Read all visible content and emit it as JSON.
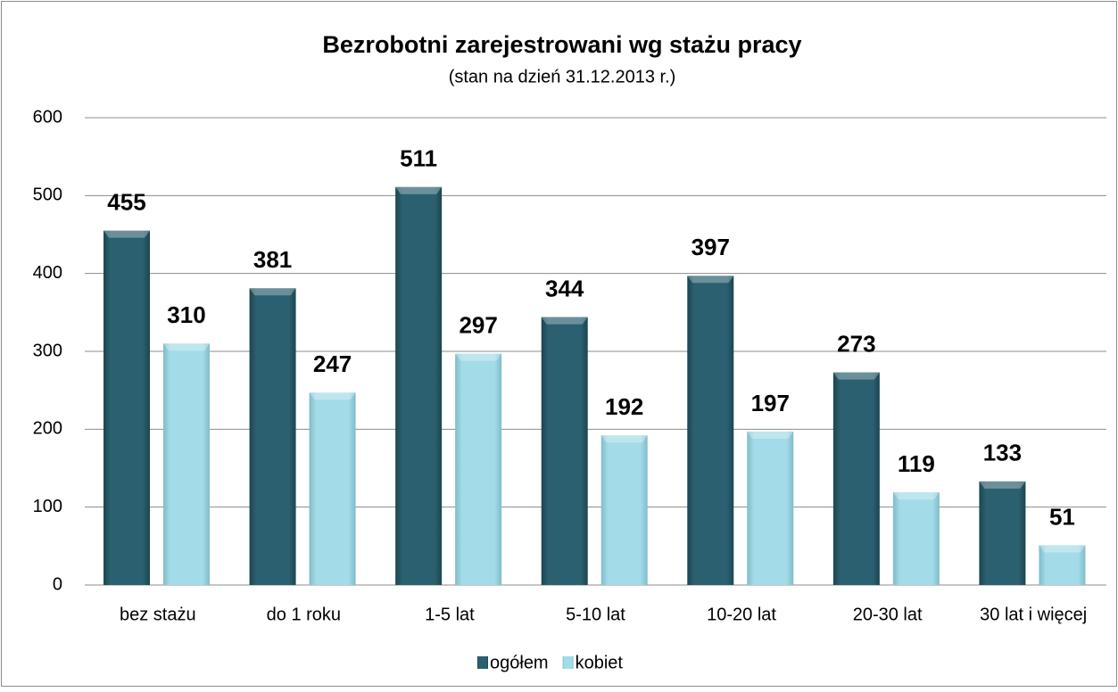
{
  "chart_data": {
    "type": "bar",
    "title": "Bezrobotni zarejestrowani wg stażu pracy",
    "subtitle": "(stan na dzień 31.12.2013 r.)",
    "categories": [
      "bez stażu",
      "do 1 roku",
      "1-5 lat",
      "5-10 lat",
      "10-20 lat",
      "20-30 lat",
      "30 lat i więcej"
    ],
    "series": [
      {
        "name": "ogółem",
        "color": "#2b6070",
        "values": [
          455,
          381,
          511,
          344,
          397,
          273,
          133
        ]
      },
      {
        "name": "kobiet",
        "color": "#a3dbe8",
        "values": [
          310,
          247,
          297,
          192,
          197,
          119,
          51
        ]
      }
    ],
    "ylim": [
      0,
      600
    ],
    "yticks": [
      0,
      100,
      200,
      300,
      400,
      500,
      600
    ],
    "grid": true,
    "legend": "bottom"
  }
}
